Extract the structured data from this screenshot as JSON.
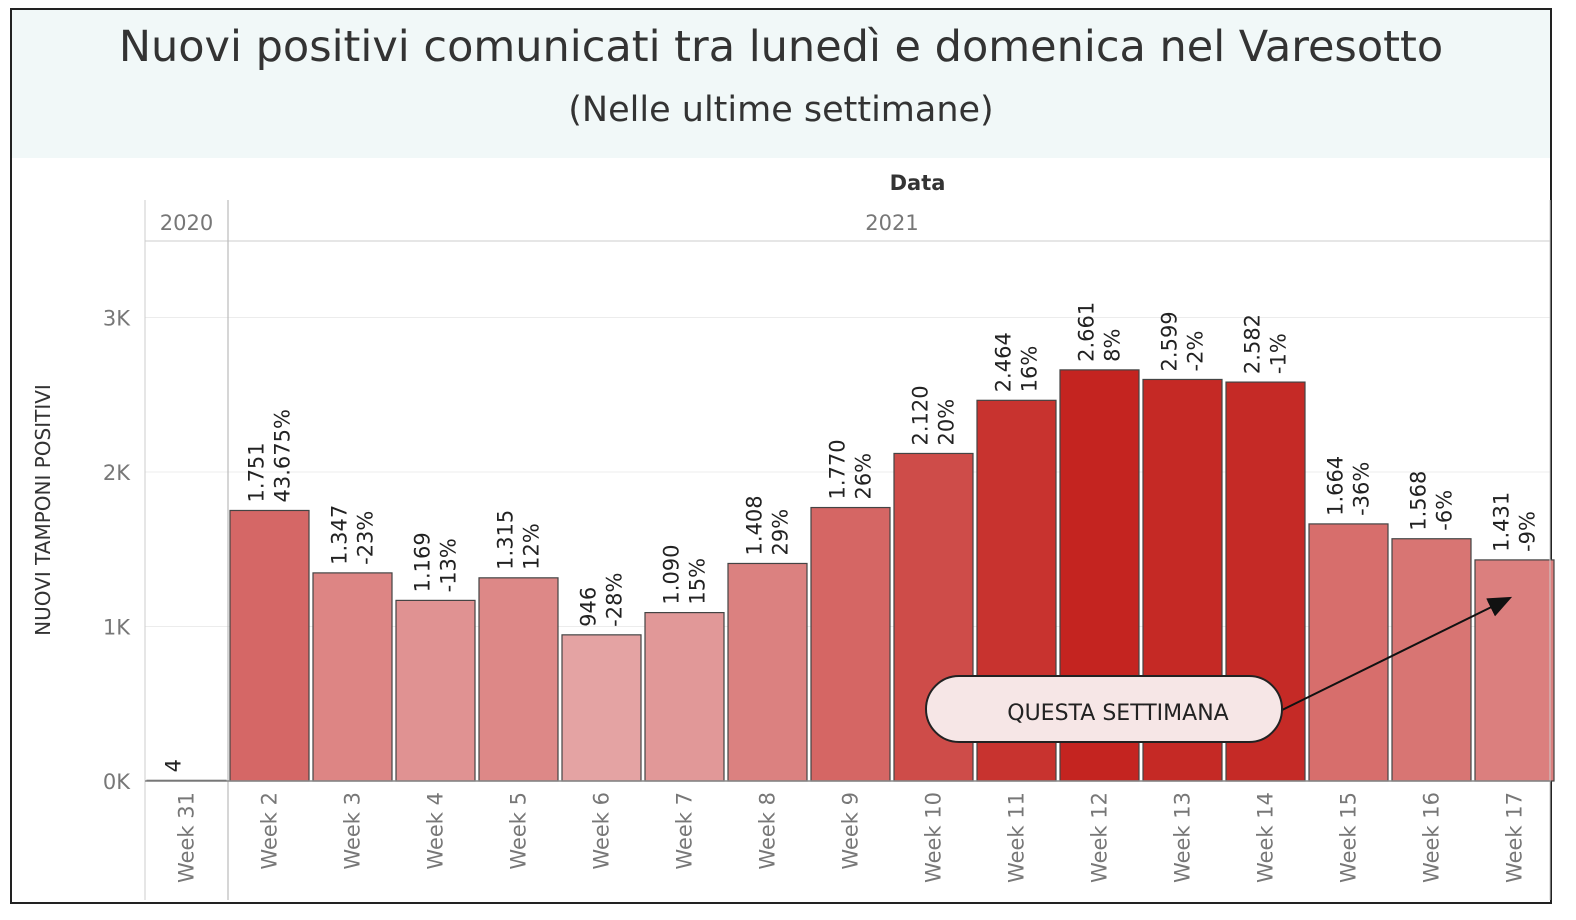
{
  "header": {
    "title": "Nuovi positivi comunicati tra lunedì e domenica nel Varesotto",
    "subtitle": "(Nelle ultime settimane)"
  },
  "chart_data": {
    "type": "bar",
    "column_header": "Data",
    "ylabel": "NUOVI TAMPONI POSITIVI",
    "ylim": [
      0,
      3500
    ],
    "y_ticks": [
      {
        "value": 0,
        "label": "0K"
      },
      {
        "value": 1000,
        "label": "1K"
      },
      {
        "value": 2000,
        "label": "2K"
      },
      {
        "value": 3000,
        "label": "3K"
      }
    ],
    "grid": true,
    "year_groups": [
      {
        "label": "2020",
        "count": 1
      },
      {
        "label": "2021",
        "count": 16
      }
    ],
    "categories": [
      "Week 31",
      "Week 2",
      "Week 3",
      "Week 4",
      "Week 5",
      "Week 6",
      "Week 7",
      "Week 8",
      "Week 9",
      "Week 10",
      "Week 11",
      "Week 12",
      "Week 13",
      "Week 14",
      "Week 15",
      "Week 16",
      "Week 17"
    ],
    "values": [
      4,
      1751,
      1347,
      1169,
      1315,
      946,
      1090,
      1408,
      1770,
      2120,
      2464,
      2661,
      2599,
      2582,
      1664,
      1568,
      1431
    ],
    "value_labels": [
      "4",
      "1.751",
      "1.347",
      "1.169",
      "1.315",
      "946",
      "1.090",
      "1.408",
      "1.770",
      "2.120",
      "2.464",
      "2.661",
      "2.599",
      "2.582",
      "1.664",
      "1.568",
      "1.431"
    ],
    "change_labels": [
      "",
      "43.675%",
      "-23%",
      "-13%",
      "12%",
      "-28%",
      "15%",
      "29%",
      "26%",
      "20%",
      "16%",
      "8%",
      "-2%",
      "-1%",
      "-36%",
      "-6%",
      "-9%"
    ],
    "colors": {
      "low": "#e4a3a3",
      "high": "#c42420",
      "bar_stroke": "#444444",
      "axis": "#888888",
      "grid": "#ececec",
      "text": "#333333",
      "tick_text": "#777777"
    },
    "annotation": {
      "text": "QUESTA SETTIMANA",
      "target_category": "Week 17",
      "target_value": 1200
    }
  }
}
